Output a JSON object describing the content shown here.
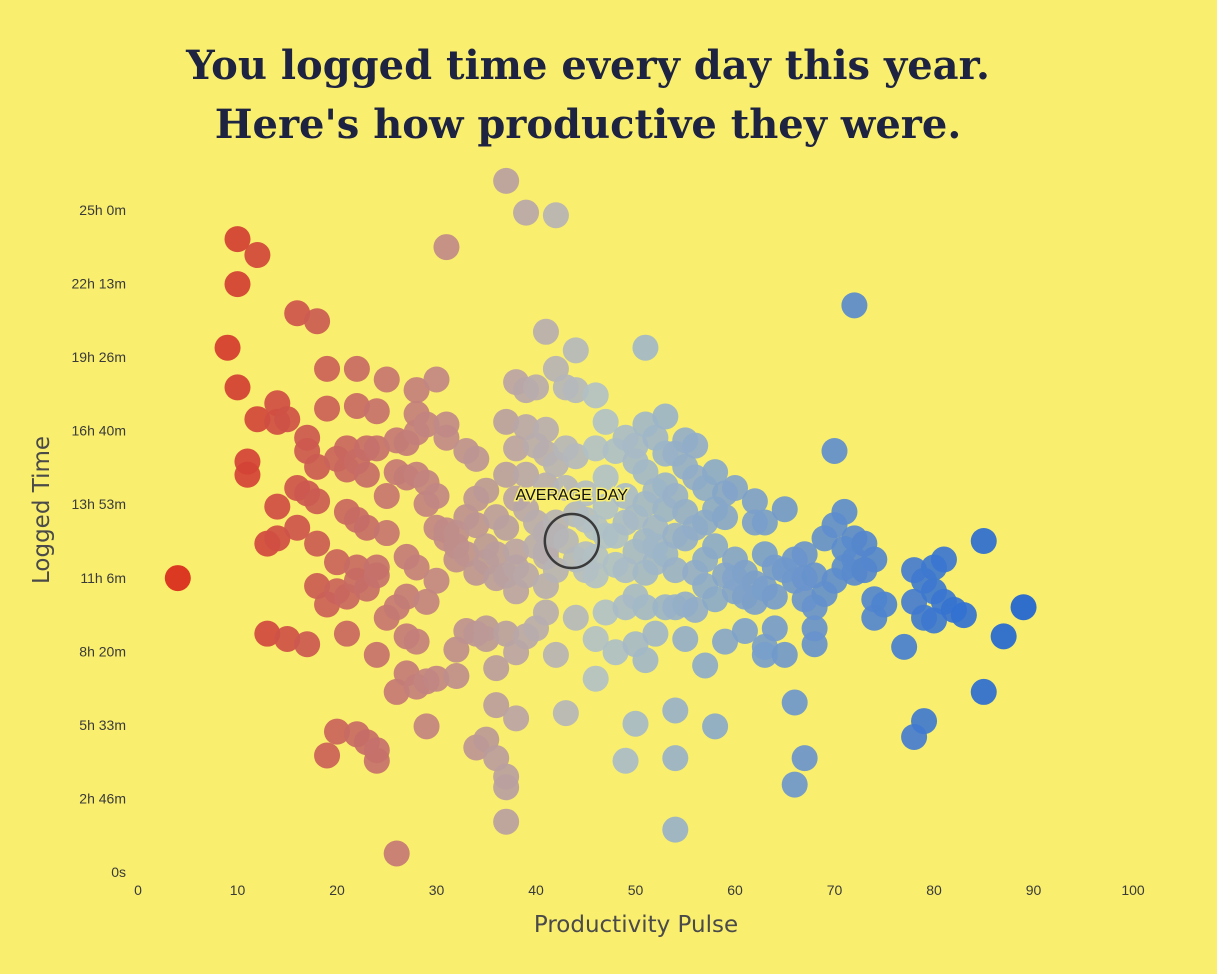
{
  "title": {
    "line1": "You logged time every day this year.",
    "line2": "Here's how productive they were."
  },
  "chart_data": {
    "type": "scatter",
    "title": "You logged time every day this year. Here's how productive they were.",
    "xlabel": "Productivity Pulse",
    "ylabel": "Logged Time",
    "xlim": [
      0,
      100
    ],
    "ylim": [
      0,
      25
    ],
    "x_ticks": [
      "0",
      "10",
      "20",
      "30",
      "40",
      "50",
      "60",
      "70",
      "80",
      "90",
      "100"
    ],
    "y_ticks": [
      "0s",
      "2h 46m",
      "5h 33m",
      "8h 20m",
      "11h 6m",
      "13h 53m",
      "16h 40m",
      "19h 26m",
      "22h 13m",
      "25h 0m"
    ],
    "grid": false,
    "color_scale": {
      "low": "#d8291a",
      "mid": "#b2c2c6",
      "high": "#1d64d2"
    },
    "average_day": {
      "label": "AVERAGE DAY",
      "x": 43.6,
      "y": 12.5
    },
    "points": [
      [
        4,
        11.1
      ],
      [
        9,
        19.8
      ],
      [
        10,
        23.9
      ],
      [
        10,
        22.2
      ],
      [
        10,
        18.3
      ],
      [
        11,
        15.5
      ],
      [
        11,
        15.0
      ],
      [
        12,
        17.1
      ],
      [
        12,
        23.3
      ],
      [
        13,
        12.4
      ],
      [
        13,
        9.0
      ],
      [
        14,
        17.7
      ],
      [
        14,
        17.0
      ],
      [
        14,
        13.8
      ],
      [
        14,
        12.6
      ],
      [
        15,
        17.1
      ],
      [
        15,
        8.8
      ],
      [
        16,
        21.1
      ],
      [
        16,
        14.5
      ],
      [
        16,
        13.0
      ],
      [
        17,
        16.4
      ],
      [
        17,
        15.9
      ],
      [
        17,
        14.3
      ],
      [
        17,
        8.6
      ],
      [
        18,
        20.8
      ],
      [
        18,
        15.3
      ],
      [
        18,
        14.0
      ],
      [
        18,
        12.4
      ],
      [
        18,
        10.8
      ],
      [
        19,
        19.0
      ],
      [
        19,
        17.5
      ],
      [
        19,
        10.1
      ],
      [
        19,
        4.4
      ],
      [
        20,
        15.6
      ],
      [
        20,
        11.7
      ],
      [
        20,
        10.6
      ],
      [
        20,
        5.3
      ],
      [
        21,
        16.0
      ],
      [
        21,
        15.2
      ],
      [
        21,
        13.6
      ],
      [
        21,
        10.4
      ],
      [
        21,
        9.0
      ],
      [
        22,
        19.0
      ],
      [
        22,
        17.6
      ],
      [
        22,
        15.5
      ],
      [
        22,
        13.3
      ],
      [
        22,
        11.5
      ],
      [
        22,
        11.0
      ],
      [
        22,
        5.2
      ],
      [
        23,
        16.0
      ],
      [
        23,
        15.0
      ],
      [
        23,
        13.0
      ],
      [
        23,
        10.7
      ],
      [
        23,
        4.9
      ],
      [
        24,
        17.4
      ],
      [
        24,
        16.0
      ],
      [
        24,
        11.5
      ],
      [
        24,
        11.2
      ],
      [
        24,
        8.2
      ],
      [
        24,
        4.6
      ],
      [
        24,
        4.2
      ],
      [
        25,
        18.6
      ],
      [
        25,
        14.2
      ],
      [
        25,
        12.8
      ],
      [
        25,
        9.6
      ],
      [
        26,
        16.3
      ],
      [
        26,
        15.1
      ],
      [
        26,
        10.0
      ],
      [
        26,
        6.8
      ],
      [
        26,
        0.7
      ],
      [
        27,
        16.2
      ],
      [
        27,
        14.9
      ],
      [
        27,
        11.9
      ],
      [
        27,
        10.4
      ],
      [
        27,
        8.9
      ],
      [
        27,
        7.5
      ],
      [
        28,
        18.2
      ],
      [
        28,
        17.3
      ],
      [
        28,
        16.6
      ],
      [
        28,
        15.0
      ],
      [
        28,
        11.5
      ],
      [
        28,
        8.7
      ],
      [
        28,
        7.0
      ],
      [
        29,
        16.9
      ],
      [
        29,
        14.7
      ],
      [
        29,
        13.9
      ],
      [
        29,
        10.2
      ],
      [
        29,
        7.2
      ],
      [
        29,
        5.5
      ],
      [
        30,
        18.6
      ],
      [
        30,
        14.2
      ],
      [
        30,
        13.0
      ],
      [
        30,
        11.0
      ],
      [
        30,
        7.3
      ],
      [
        31,
        23.6
      ],
      [
        31,
        16.9
      ],
      [
        31,
        16.4
      ],
      [
        31,
        12.9
      ],
      [
        31,
        12.6
      ],
      [
        32,
        12.8
      ],
      [
        32,
        12.3
      ],
      [
        32,
        11.8
      ],
      [
        32,
        8.4
      ],
      [
        32,
        7.4
      ],
      [
        33,
        15.9
      ],
      [
        33,
        13.4
      ],
      [
        33,
        12.0
      ],
      [
        33,
        9.1
      ],
      [
        34,
        15.6
      ],
      [
        34,
        14.1
      ],
      [
        34,
        13.1
      ],
      [
        34,
        11.3
      ],
      [
        34,
        9.0
      ],
      [
        34,
        4.7
      ],
      [
        35,
        14.4
      ],
      [
        35,
        12.3
      ],
      [
        35,
        11.7
      ],
      [
        35,
        9.2
      ],
      [
        35,
        8.8
      ],
      [
        35,
        5.0
      ],
      [
        36,
        13.4
      ],
      [
        36,
        12.0
      ],
      [
        36,
        11.1
      ],
      [
        36,
        7.7
      ],
      [
        36,
        6.3
      ],
      [
        36,
        4.3
      ],
      [
        37,
        26.1
      ],
      [
        37,
        17.0
      ],
      [
        37,
        15.0
      ],
      [
        37,
        13.0
      ],
      [
        37,
        11.2
      ],
      [
        37,
        9.0
      ],
      [
        37,
        3.6
      ],
      [
        37,
        3.2
      ],
      [
        37,
        1.9
      ],
      [
        38,
        18.5
      ],
      [
        38,
        16.0
      ],
      [
        38,
        14.1
      ],
      [
        38,
        12.1
      ],
      [
        38,
        11.5
      ],
      [
        38,
        10.6
      ],
      [
        38,
        8.3
      ],
      [
        38,
        5.8
      ],
      [
        39,
        24.9
      ],
      [
        39,
        18.2
      ],
      [
        39,
        16.8
      ],
      [
        39,
        15.0
      ],
      [
        39,
        13.7
      ],
      [
        39,
        11.2
      ],
      [
        39,
        8.9
      ],
      [
        40,
        18.3
      ],
      [
        40,
        16.1
      ],
      [
        40,
        13.2
      ],
      [
        40,
        12.3
      ],
      [
        40,
        9.2
      ],
      [
        41,
        20.4
      ],
      [
        41,
        16.7
      ],
      [
        41,
        15.8
      ],
      [
        41,
        14.6
      ],
      [
        41,
        12.8
      ],
      [
        41,
        12.1
      ],
      [
        41,
        11.9
      ],
      [
        41,
        10.8
      ],
      [
        41,
        9.8
      ],
      [
        42,
        24.8
      ],
      [
        42,
        19.0
      ],
      [
        42,
        15.4
      ],
      [
        42,
        13.2
      ],
      [
        42,
        12.7
      ],
      [
        42,
        11.4
      ],
      [
        42,
        8.2
      ],
      [
        43,
        18.3
      ],
      [
        43,
        16.0
      ],
      [
        43,
        14.5
      ],
      [
        43,
        12.5
      ],
      [
        43,
        6.0
      ],
      [
        44,
        19.7
      ],
      [
        44,
        18.2
      ],
      [
        44,
        15.7
      ],
      [
        44,
        13.5
      ],
      [
        44,
        11.8
      ],
      [
        44,
        9.6
      ],
      [
        45,
        14.3
      ],
      [
        45,
        13.3
      ],
      [
        45,
        12.0
      ],
      [
        45,
        11.4
      ],
      [
        46,
        18.0
      ],
      [
        46,
        16.0
      ],
      [
        46,
        13.0
      ],
      [
        46,
        11.9
      ],
      [
        46,
        11.2
      ],
      [
        46,
        7.3
      ],
      [
        46,
        8.8
      ],
      [
        47,
        17.0
      ],
      [
        47,
        14.9
      ],
      [
        47,
        13.8
      ],
      [
        47,
        12.7
      ],
      [
        47,
        9.8
      ],
      [
        48,
        15.9
      ],
      [
        48,
        12.7
      ],
      [
        48,
        11.6
      ],
      [
        48,
        8.3
      ],
      [
        49,
        16.4
      ],
      [
        49,
        14.2
      ],
      [
        49,
        13.2
      ],
      [
        49,
        11.4
      ],
      [
        49,
        10.0
      ],
      [
        49,
        4.2
      ],
      [
        50,
        16.1
      ],
      [
        50,
        15.5
      ],
      [
        50,
        13.4
      ],
      [
        50,
        12.1
      ],
      [
        50,
        10.4
      ],
      [
        50,
        8.6
      ],
      [
        50,
        5.6
      ],
      [
        51,
        19.8
      ],
      [
        51,
        16.9
      ],
      [
        51,
        15.1
      ],
      [
        51,
        13.9
      ],
      [
        51,
        12.5
      ],
      [
        51,
        11.3
      ],
      [
        51,
        10.0
      ],
      [
        51,
        8.0
      ],
      [
        52,
        16.4
      ],
      [
        52,
        14.4
      ],
      [
        52,
        13.0
      ],
      [
        52,
        12.3
      ],
      [
        52,
        11.7
      ],
      [
        52,
        9.0
      ],
      [
        53,
        17.2
      ],
      [
        53,
        15.8
      ],
      [
        53,
        14.6
      ],
      [
        53,
        13.7
      ],
      [
        53,
        12.0
      ],
      [
        53,
        10.0
      ],
      [
        54,
        15.8
      ],
      [
        54,
        14.2
      ],
      [
        54,
        12.7
      ],
      [
        54,
        11.4
      ],
      [
        54,
        10.0
      ],
      [
        54,
        6.1
      ],
      [
        54,
        4.3
      ],
      [
        54,
        1.6
      ],
      [
        55,
        16.3
      ],
      [
        55,
        15.3
      ],
      [
        55,
        13.6
      ],
      [
        55,
        12.6
      ],
      [
        55,
        10.1
      ],
      [
        55,
        8.8
      ],
      [
        56,
        16.1
      ],
      [
        56,
        14.9
      ],
      [
        56,
        13.0
      ],
      [
        56,
        11.3
      ],
      [
        56,
        9.9
      ],
      [
        57,
        14.5
      ],
      [
        57,
        13.2
      ],
      [
        57,
        11.8
      ],
      [
        57,
        10.8
      ],
      [
        57,
        7.8
      ],
      [
        58,
        15.1
      ],
      [
        58,
        13.7
      ],
      [
        58,
        12.3
      ],
      [
        58,
        10.3
      ],
      [
        58,
        5.5
      ],
      [
        59,
        14.3
      ],
      [
        59,
        13.4
      ],
      [
        59,
        11.2
      ],
      [
        59,
        8.7
      ],
      [
        60,
        14.5
      ],
      [
        60,
        11.8
      ],
      [
        60,
        11.1
      ],
      [
        60,
        10.6
      ],
      [
        61,
        11.3
      ],
      [
        61,
        10.4
      ],
      [
        61,
        9.1
      ],
      [
        62,
        14.0
      ],
      [
        62,
        13.2
      ],
      [
        62,
        10.9
      ],
      [
        62,
        10.2
      ],
      [
        63,
        13.2
      ],
      [
        63,
        12.0
      ],
      [
        63,
        10.7
      ],
      [
        63,
        8.5
      ],
      [
        63,
        8.2
      ],
      [
        64,
        11.5
      ],
      [
        64,
        10.4
      ],
      [
        64,
        9.2
      ],
      [
        65,
        13.7
      ],
      [
        65,
        11.4
      ],
      [
        65,
        8.2
      ],
      [
        66,
        11.8
      ],
      [
        66,
        11.0
      ],
      [
        66,
        6.4
      ],
      [
        66,
        3.3
      ],
      [
        67,
        12.0
      ],
      [
        67,
        11.1
      ],
      [
        67,
        10.3
      ],
      [
        67,
        4.3
      ],
      [
        68,
        11.2
      ],
      [
        68,
        10.0
      ],
      [
        68,
        9.2
      ],
      [
        68,
        8.6
      ],
      [
        69,
        12.6
      ],
      [
        69,
        10.5
      ],
      [
        70,
        15.9
      ],
      [
        70,
        13.1
      ],
      [
        70,
        11.0
      ],
      [
        71,
        13.6
      ],
      [
        71,
        12.2
      ],
      [
        71,
        11.5
      ],
      [
        72,
        21.4
      ],
      [
        72,
        12.6
      ],
      [
        72,
        11.8
      ],
      [
        72,
        11.3
      ],
      [
        73,
        11.4
      ],
      [
        73,
        12.4
      ],
      [
        74,
        11.8
      ],
      [
        74,
        10.3
      ],
      [
        74,
        9.6
      ],
      [
        75,
        10.1
      ],
      [
        77,
        8.5
      ],
      [
        78,
        11.4
      ],
      [
        78,
        10.2
      ],
      [
        78,
        5.1
      ],
      [
        79,
        11.0
      ],
      [
        79,
        9.6
      ],
      [
        79,
        5.7
      ],
      [
        80,
        11.5
      ],
      [
        80,
        10.6
      ],
      [
        80,
        9.5
      ],
      [
        81,
        11.8
      ],
      [
        81,
        10.2
      ],
      [
        82,
        9.9
      ],
      [
        83,
        9.7
      ],
      [
        85,
        12.5
      ],
      [
        85,
        6.8
      ],
      [
        87,
        8.9
      ],
      [
        89,
        10.0
      ]
    ]
  }
}
